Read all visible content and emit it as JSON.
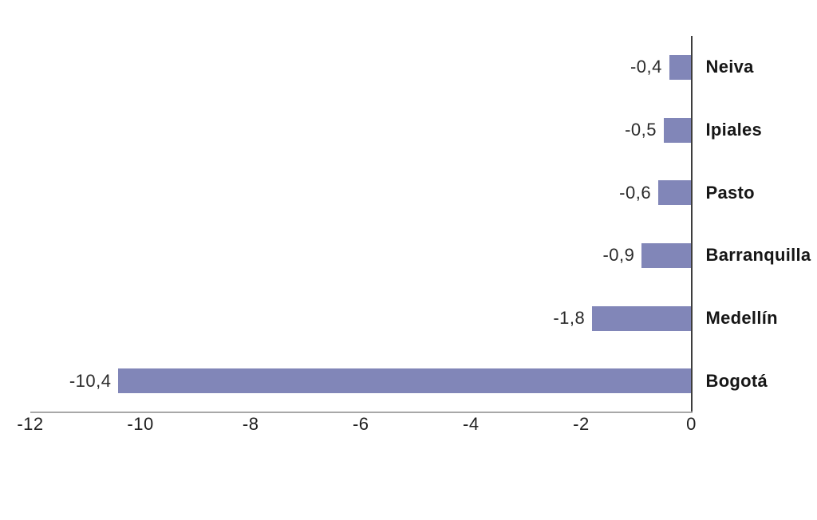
{
  "chart_data": {
    "type": "bar",
    "orientation": "horizontal",
    "title": "",
    "xlabel": "",
    "ylabel": "",
    "categories": [
      "Neiva",
      "Ipiales",
      "Pasto",
      "Barranquilla",
      "Medellín",
      "Bogotá"
    ],
    "values": [
      -0.4,
      -0.5,
      -0.6,
      -0.9,
      -1.8,
      -10.4
    ],
    "value_labels": [
      "-0,4",
      "-0,5",
      "-0,6",
      "-0,9",
      "-1,8",
      "-10,4"
    ],
    "xlim": [
      -12,
      0
    ],
    "x_ticks": [
      {
        "value": -12,
        "label": "-12"
      },
      {
        "value": -10,
        "label": "-10"
      },
      {
        "value": -8,
        "label": "-8"
      },
      {
        "value": -6,
        "label": "-6"
      },
      {
        "value": -4,
        "label": "-4"
      },
      {
        "value": -2,
        "label": "-2"
      },
      {
        "value": 0,
        "label": "0"
      }
    ],
    "grid": false,
    "legend": false,
    "colors": {
      "bar_fill": "#8186b8",
      "zero_axis": "#3d3d3d",
      "baseline": "#a8a8a8",
      "text": "#1f1f1f",
      "background": "#ffffff"
    }
  }
}
